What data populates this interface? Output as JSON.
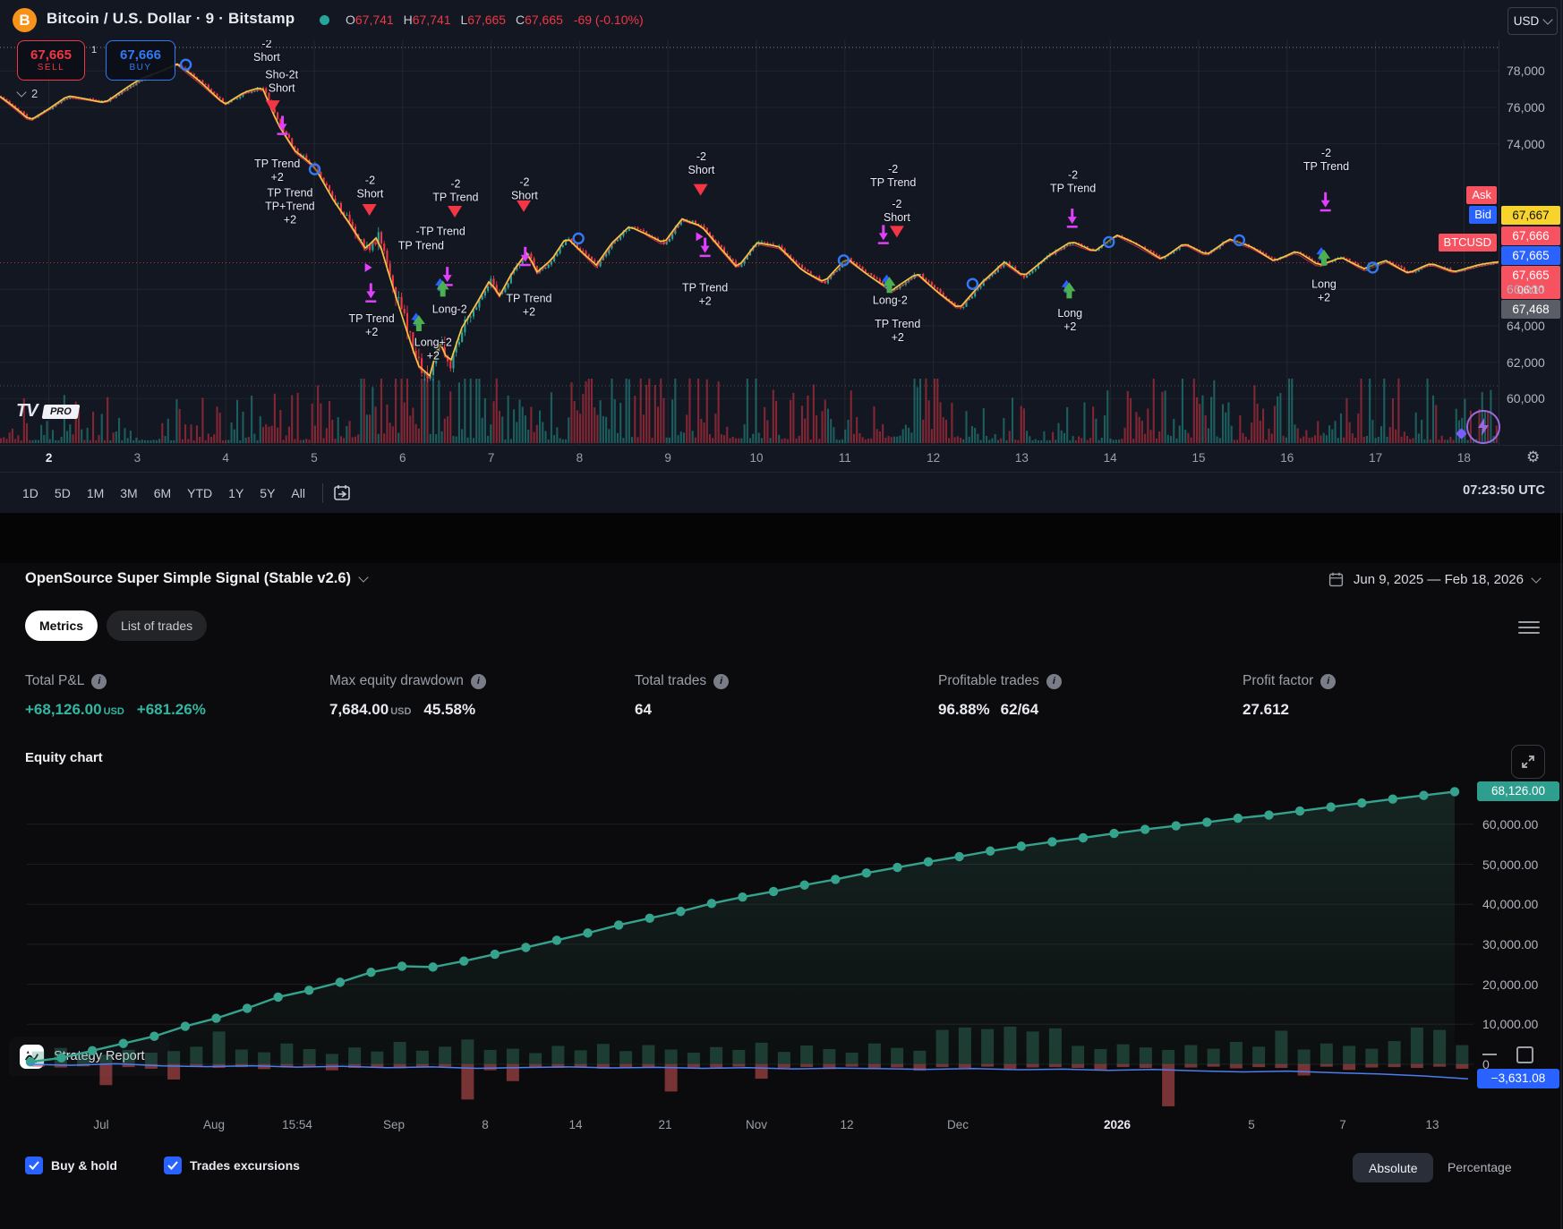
{
  "header": {
    "symbol_full": "Bitcoin / U.S. Dollar · 9 · Bitstamp",
    "o_label": "O",
    "o": "67,741",
    "h_label": "H",
    "h": "67,741",
    "l_label": "L",
    "l": "67,665",
    "c_label": "C",
    "c": "67,665",
    "change": "-69 (-0.10%)",
    "currency": "USD"
  },
  "trade_panel": {
    "sell_price": "67,665",
    "sell_label": "SELL",
    "spread": "1",
    "buy_price": "67,666",
    "buy_label": "BUY",
    "collapsed_count": "2"
  },
  "price_axis": {
    "ticks": [
      "78,000",
      "76,000",
      "74,000",
      "66,000",
      "64,000",
      "62,000",
      "60,000"
    ],
    "tick_values": [
      78000,
      76000,
      74000,
      66000,
      64000,
      62000,
      60000
    ],
    "yellow_badge": "67,667",
    "ask_label": "Ask",
    "ask": "67,666",
    "bid_label": "Bid",
    "bid": "67,665",
    "symbol_badge": "BTCUSD",
    "symbol_price": "67,665",
    "symbol_time": "06:10",
    "last_badge": "67,468",
    "qty_badge": "1"
  },
  "time_axis": {
    "labels": [
      "2",
      "3",
      "4",
      "5",
      "6",
      "7",
      "8",
      "9",
      "10",
      "11",
      "12",
      "13",
      "14",
      "15",
      "16",
      "17",
      "18"
    ]
  },
  "watermark": {
    "logo": "TV",
    "pro": "PRO"
  },
  "toolbar": {
    "ranges": [
      "1D",
      "5D",
      "1M",
      "3M",
      "6M",
      "YTD",
      "1Y",
      "5Y",
      "All"
    ],
    "clock": "07:23:50 UTC"
  },
  "strategy": {
    "tab": "Strategy Report",
    "title": "OpenSource Super Simple Signal (Stable v2.6)",
    "date_range": "Jun 9, 2025 — Feb 18, 2026",
    "tabs": [
      "Metrics",
      "List of trades"
    ],
    "active_tab": "Metrics",
    "metrics": [
      {
        "label": "Total P&L",
        "value": "+68,126.00",
        "unit": "USD",
        "extra": "+681.26%",
        "positive": true
      },
      {
        "label": "Max equity drawdown",
        "value": "7,684.00",
        "unit": "USD",
        "extra": "45.58%",
        "positive": false
      },
      {
        "label": "Total trades",
        "value": "64",
        "unit": "",
        "extra": "",
        "positive": false
      },
      {
        "label": "Profitable trades",
        "value": "96.88%",
        "unit": "",
        "extra": "62/64",
        "positive": false
      },
      {
        "label": "Profit factor",
        "value": "27.612",
        "unit": "",
        "extra": "",
        "positive": false
      }
    ],
    "equity_title": "Equity chart",
    "controls": {
      "buy_hold": "Buy & hold",
      "excursions": "Trades excursions",
      "absolute": "Absolute",
      "percentage": "Percentage"
    }
  },
  "chart_data": [
    {
      "type": "candlestick",
      "symbol": "BTCUSD",
      "interval": "9",
      "exchange": "Bitstamp",
      "y_ticks": [
        78000,
        76000,
        74000,
        66000,
        64000,
        62000,
        60000
      ],
      "x_ticks": [
        "2",
        "3",
        "4",
        "5",
        "6",
        "7",
        "8",
        "9",
        "10",
        "11",
        "12",
        "13",
        "14",
        "15",
        "16",
        "17",
        "18"
      ],
      "last_price": 67468,
      "current_price": 67665,
      "session_high_line": 79300,
      "colors": {
        "up": "#26a69a",
        "down": "#f23645",
        "ma": "#eec643",
        "ma2": "#f23645",
        "marker": "#e040fb"
      },
      "price_path": [
        [
          0,
          76600
        ],
        [
          0.02,
          75300
        ],
        [
          0.045,
          76600
        ],
        [
          0.07,
          76300
        ],
        [
          0.095,
          77600
        ],
        [
          0.118,
          78400
        ],
        [
          0.135,
          77300
        ],
        [
          0.15,
          76200
        ],
        [
          0.163,
          76800
        ],
        [
          0.175,
          77100
        ],
        [
          0.185,
          75200
        ],
        [
          0.197,
          73600
        ],
        [
          0.21,
          72700
        ],
        [
          0.222,
          71000
        ],
        [
          0.232,
          69800
        ],
        [
          0.244,
          68200
        ],
        [
          0.252,
          68900
        ],
        [
          0.262,
          66200
        ],
        [
          0.272,
          63600
        ],
        [
          0.279,
          61800
        ],
        [
          0.287,
          61200
        ],
        [
          0.293,
          63200
        ],
        [
          0.3,
          61900
        ],
        [
          0.308,
          63900
        ],
        [
          0.318,
          65200
        ],
        [
          0.327,
          66500
        ],
        [
          0.333,
          65600
        ],
        [
          0.342,
          67000
        ],
        [
          0.352,
          68100
        ],
        [
          0.358,
          66900
        ],
        [
          0.368,
          67600
        ],
        [
          0.378,
          68900
        ],
        [
          0.388,
          68100
        ],
        [
          0.398,
          67300
        ],
        [
          0.408,
          68500
        ],
        [
          0.42,
          69500
        ],
        [
          0.43,
          69100
        ],
        [
          0.443,
          68500
        ],
        [
          0.455,
          69900
        ],
        [
          0.468,
          69500
        ],
        [
          0.48,
          68300
        ],
        [
          0.492,
          67200
        ],
        [
          0.505,
          68600
        ],
        [
          0.52,
          68300
        ],
        [
          0.535,
          67100
        ],
        [
          0.55,
          66400
        ],
        [
          0.565,
          67700
        ],
        [
          0.578,
          66900
        ],
        [
          0.595,
          65900
        ],
        [
          0.612,
          66900
        ],
        [
          0.628,
          65700
        ],
        [
          0.64,
          64900
        ],
        [
          0.655,
          66400
        ],
        [
          0.67,
          67500
        ],
        [
          0.683,
          66700
        ],
        [
          0.7,
          67900
        ],
        [
          0.715,
          68600
        ],
        [
          0.73,
          68100
        ],
        [
          0.745,
          69000
        ],
        [
          0.76,
          68400
        ],
        [
          0.775,
          67700
        ],
        [
          0.79,
          68500
        ],
        [
          0.805,
          67900
        ],
        [
          0.82,
          68800
        ],
        [
          0.835,
          68300
        ],
        [
          0.85,
          67600
        ],
        [
          0.865,
          68100
        ],
        [
          0.88,
          67300
        ],
        [
          0.895,
          67800
        ],
        [
          0.91,
          67100
        ],
        [
          0.925,
          67600
        ],
        [
          0.94,
          66900
        ],
        [
          0.955,
          67400
        ],
        [
          0.97,
          67000
        ],
        [
          0.985,
          67300
        ],
        [
          1,
          67500
        ]
      ],
      "markers": [
        {
          "fx": 0.178,
          "p": 79300,
          "t": "label",
          "lines": [
            "-2",
            "Short"
          ]
        },
        {
          "fx": 0.188,
          "p": 77600,
          "t": "label",
          "lines": [
            "Sho-2t",
            "Short"
          ]
        },
        {
          "fx": 0.182,
          "p": 75800,
          "t": "tri_down"
        },
        {
          "fx": 0.1885,
          "p": 74800,
          "t": "arrow_dn"
        },
        {
          "fx": 0.185,
          "p": 72700,
          "t": "label",
          "lines": [
            "TP Trend",
            "+2"
          ]
        },
        {
          "fx": 0.1935,
          "p": 71100,
          "t": "label",
          "lines": [
            "TP Trend",
            "TP+Trend",
            "+2"
          ]
        },
        {
          "fx": 0.247,
          "p": 71800,
          "t": "label",
          "lines": [
            "-2",
            "Short"
          ]
        },
        {
          "fx": 0.2465,
          "p": 70100,
          "t": "tri_down"
        },
        {
          "fx": 0.2435,
          "p": 67200,
          "t": "tri_right"
        },
        {
          "fx": 0.2475,
          "p": 65600,
          "t": "arrow_dn"
        },
        {
          "fx": 0.248,
          "p": 64200,
          "t": "label",
          "lines": [
            "TP Trend",
            "+2"
          ]
        },
        {
          "fx": 0.304,
          "p": 71600,
          "t": "label",
          "lines": [
            "-2",
            "TP Trend"
          ]
        },
        {
          "fx": 0.294,
          "p": 69000,
          "t": "label",
          "lines": [
            "-TP Trend"
          ]
        },
        {
          "fx": 0.281,
          "p": 68200,
          "t": "label",
          "lines": [
            "TP Trend"
          ]
        },
        {
          "fx": 0.3035,
          "p": 70000,
          "t": "tri_down"
        },
        {
          "fx": 0.2985,
          "p": 66500,
          "t": "arrow_dn"
        },
        {
          "fx": 0.2955,
          "p": 65900,
          "t": "arrow_up"
        },
        {
          "fx": 0.3,
          "p": 64700,
          "t": "label",
          "lines": [
            "Long-2"
          ]
        },
        {
          "fx": 0.2795,
          "p": 64000,
          "t": "arrow_up"
        },
        {
          "fx": 0.289,
          "p": 62900,
          "t": "label",
          "lines": [
            "Long+2",
            "+2"
          ]
        },
        {
          "fx": 0.35,
          "p": 71700,
          "t": "label",
          "lines": [
            "-2",
            "Short"
          ]
        },
        {
          "fx": 0.3495,
          "p": 70300,
          "t": "tri_down"
        },
        {
          "fx": 0.3505,
          "p": 67600,
          "t": "arrow_dn"
        },
        {
          "fx": 0.353,
          "p": 65300,
          "t": "label",
          "lines": [
            "TP Trend",
            "+2"
          ]
        },
        {
          "fx": 0.468,
          "p": 73100,
          "t": "label",
          "lines": [
            "-2",
            "Short"
          ]
        },
        {
          "fx": 0.4675,
          "p": 71200,
          "t": "tri_down"
        },
        {
          "fx": 0.4645,
          "p": 68900,
          "t": "tri_right"
        },
        {
          "fx": 0.4705,
          "p": 68100,
          "t": "arrow_dn"
        },
        {
          "fx": 0.4705,
          "p": 65900,
          "t": "label",
          "lines": [
            "TP Trend",
            "+2"
          ]
        },
        {
          "fx": 0.596,
          "p": 72400,
          "t": "label",
          "lines": [
            "-2",
            "TP Trend"
          ]
        },
        {
          "fx": 0.5985,
          "p": 70500,
          "t": "label",
          "lines": [
            "-2",
            "Short"
          ]
        },
        {
          "fx": 0.5985,
          "p": 68900,
          "t": "tri_down"
        },
        {
          "fx": 0.5895,
          "p": 68800,
          "t": "arrow_dn"
        },
        {
          "fx": 0.5935,
          "p": 66100,
          "t": "arrow_up"
        },
        {
          "fx": 0.594,
          "p": 65200,
          "t": "label",
          "lines": [
            "Long-2"
          ]
        },
        {
          "fx": 0.599,
          "p": 63900,
          "t": "label",
          "lines": [
            "TP Trend",
            "+2"
          ]
        },
        {
          "fx": 0.716,
          "p": 72100,
          "t": "label",
          "lines": [
            "-2",
            "TP Trend"
          ]
        },
        {
          "fx": 0.7155,
          "p": 69700,
          "t": "arrow_dn"
        },
        {
          "fx": 0.7135,
          "p": 65800,
          "t": "arrow_up"
        },
        {
          "fx": 0.714,
          "p": 64500,
          "t": "label",
          "lines": [
            "Long",
            "+2"
          ]
        },
        {
          "fx": 0.885,
          "p": 73300,
          "t": "label",
          "lines": [
            "-2",
            "TP Trend"
          ]
        },
        {
          "fx": 0.8845,
          "p": 70600,
          "t": "arrow_dn"
        },
        {
          "fx": 0.8835,
          "p": 67600,
          "t": "arrow_up"
        },
        {
          "fx": 0.8835,
          "p": 66100,
          "t": "label",
          "lines": [
            "Long",
            "+2"
          ]
        }
      ],
      "entry_circles": [
        [
          0.124,
          78350
        ],
        [
          0.21,
          72600
        ],
        [
          0.386,
          68800
        ],
        [
          0.563,
          67600
        ],
        [
          0.649,
          66300
        ],
        [
          0.74,
          68600
        ],
        [
          0.827,
          68700
        ],
        [
          0.916,
          67200
        ]
      ]
    },
    {
      "type": "line",
      "title": "Equity chart",
      "y_ticks": [
        "60,000.00",
        "50,000.00",
        "40,000.00",
        "30,000.00",
        "20,000.00",
        "10,000.00",
        "0"
      ],
      "y_tick_values": [
        60000,
        50000,
        40000,
        30000,
        20000,
        10000,
        0
      ],
      "x_ticks": [
        [
          "Jul",
          113
        ],
        [
          "Aug",
          239
        ],
        [
          "15:54",
          332
        ],
        [
          "Sep",
          440
        ],
        [
          "8",
          542
        ],
        [
          "14",
          643
        ],
        [
          "21",
          743
        ],
        [
          "Nov",
          845
        ],
        [
          "12",
          946
        ],
        [
          "Dec",
          1070
        ],
        [
          "2026",
          1248
        ],
        [
          "5",
          1398
        ],
        [
          "7",
          1500
        ],
        [
          "13",
          1600
        ]
      ],
      "final_value": 68126.0,
      "final_badge": "68,126.00",
      "buyhold_final": -3631.08,
      "buyhold_badge": "−3,631.08",
      "equity": [
        600,
        1600,
        3400,
        5200,
        7000,
        9500,
        11500,
        14000,
        16800,
        18500,
        20500,
        23000,
        24500,
        24300,
        25800,
        27500,
        29200,
        31000,
        32800,
        34800,
        36500,
        38200,
        40200,
        41800,
        43200,
        44800,
        46200,
        47800,
        49200,
        50600,
        51900,
        53300,
        54500,
        55600,
        56600,
        57700,
        58700,
        59600,
        60500,
        61500,
        62300,
        63300,
        64300,
        65300,
        66300,
        67200,
        68126
      ],
      "trade_bars": [
        [
          3200,
          -600
        ],
        [
          4100,
          -800
        ],
        [
          2800,
          -500
        ],
        [
          2400,
          -5200
        ],
        [
          3600,
          -700
        ],
        [
          2900,
          -1100
        ],
        [
          3300,
          -3800
        ],
        [
          4400,
          -600
        ],
        [
          8200,
          -900
        ],
        [
          3700,
          -700
        ],
        [
          3000,
          -1200
        ],
        [
          5200,
          -800
        ],
        [
          3800,
          -600
        ],
        [
          2600,
          -1500
        ],
        [
          4200,
          -900
        ],
        [
          3200,
          -700
        ],
        [
          5600,
          -1000
        ],
        [
          3400,
          -800
        ],
        [
          4400,
          -600
        ],
        [
          6200,
          -8800
        ],
        [
          3600,
          -1500
        ],
        [
          3900,
          -4200
        ],
        [
          2800,
          -700
        ],
        [
          4600,
          -900
        ],
        [
          3500,
          -600
        ],
        [
          5100,
          -1100
        ],
        [
          3300,
          -800
        ],
        [
          4800,
          -700
        ],
        [
          3700,
          -6800
        ],
        [
          2900,
          -1000
        ],
        [
          4300,
          -800
        ],
        [
          3600,
          -600
        ],
        [
          5400,
          -3600
        ],
        [
          3100,
          -900
        ],
        [
          4700,
          -700
        ],
        [
          3800,
          -1200
        ],
        [
          2900,
          -600
        ],
        [
          5200,
          -900
        ],
        [
          4100,
          -800
        ],
        [
          3400,
          -1600
        ],
        [
          8600,
          -700
        ],
        [
          9200,
          -900
        ],
        [
          8800,
          -600
        ],
        [
          9400,
          -1100
        ],
        [
          8200,
          -800
        ],
        [
          9000,
          -700
        ],
        [
          4600,
          -900
        ],
        [
          3800,
          -1300
        ],
        [
          5000,
          -700
        ],
        [
          4200,
          -900
        ],
        [
          3600,
          -10500
        ],
        [
          4800,
          -800
        ],
        [
          3900,
          -600
        ],
        [
          5600,
          -1000
        ],
        [
          4400,
          -700
        ],
        [
          8400,
          -900
        ],
        [
          3700,
          -2800
        ],
        [
          5200,
          -600
        ],
        [
          4600,
          -1400
        ],
        [
          3900,
          -800
        ],
        [
          5800,
          -700
        ],
        [
          9200,
          -900
        ],
        [
          8600,
          -600
        ],
        [
          4800,
          -1100
        ]
      ],
      "buy_hold_line": [
        0,
        -250,
        150,
        -400,
        -600,
        -350,
        -700,
        -500,
        -850,
        -650,
        -1000,
        -800,
        -650,
        -900,
        -750,
        -1000,
        -850,
        -1150,
        -950,
        -1100,
        -1250,
        -1050,
        -1350,
        -1200,
        -1500,
        -1300,
        -1650,
        -1900,
        -1700,
        -2100,
        -2400,
        -2900,
        -3631
      ],
      "colors": {
        "equity": "#35a28e",
        "bars_up": "#3f9878",
        "bars_down": "#c14e4e",
        "buy_hold": "#4c7df0",
        "final_badge_bg": "#2e9e8f",
        "buyhold_badge_bg": "#2962ff"
      }
    }
  ]
}
